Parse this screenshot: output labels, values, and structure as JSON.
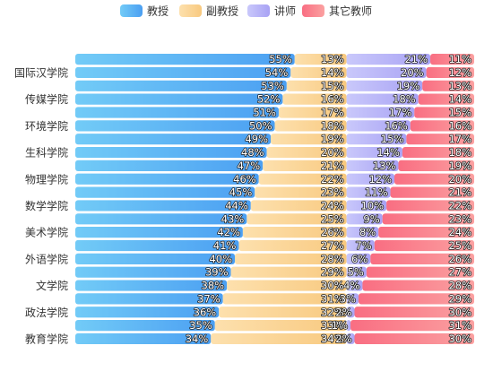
{
  "chart_data": {
    "type": "bar",
    "orientation": "horizontal",
    "stacked": "percent",
    "legend_position": "top-center",
    "grid": false,
    "categories": [
      "",
      "国际汉学院",
      "",
      "传媒学院",
      "",
      "环境学院",
      "",
      "生科学院",
      "",
      "物理学院",
      "",
      "数学学院",
      "",
      "美术学院",
      "",
      "外语学院",
      "",
      "文学院",
      "",
      "政法学院",
      "",
      "教育学院"
    ],
    "series": [
      {
        "name": "教授",
        "color_start": "#72cbf7",
        "color_end": "#4b9ff2",
        "values": [
          55,
          54,
          53,
          52,
          51,
          50,
          49,
          48,
          47,
          46,
          45,
          44,
          43,
          42,
          41,
          40,
          39,
          38,
          37,
          36,
          35,
          34
        ]
      },
      {
        "name": "副教授",
        "color_start": "#fde0ad",
        "color_end": "#f8c97f",
        "values": [
          13,
          14,
          15,
          16,
          17,
          18,
          19,
          20,
          21,
          22,
          23,
          24,
          25,
          26,
          27,
          28,
          29,
          30,
          31,
          32,
          33,
          34
        ]
      },
      {
        "name": "讲师",
        "color_start": "#c9c8fb",
        "color_end": "#a8a2f4",
        "values": [
          21,
          20,
          19,
          18,
          17,
          16,
          15,
          14,
          13,
          12,
          11,
          10,
          9,
          8,
          7,
          6,
          5,
          4,
          3,
          2,
          1,
          2
        ]
      },
      {
        "name": "其它教师",
        "color_start": "#f96e82",
        "color_end": "#fba1a1",
        "values": [
          11,
          12,
          13,
          14,
          15,
          16,
          17,
          18,
          19,
          20,
          21,
          22,
          23,
          24,
          25,
          26,
          27,
          28,
          29,
          30,
          31,
          30
        ]
      }
    ],
    "value_format": "{v}%",
    "xlim": [
      0,
      100
    ]
  }
}
